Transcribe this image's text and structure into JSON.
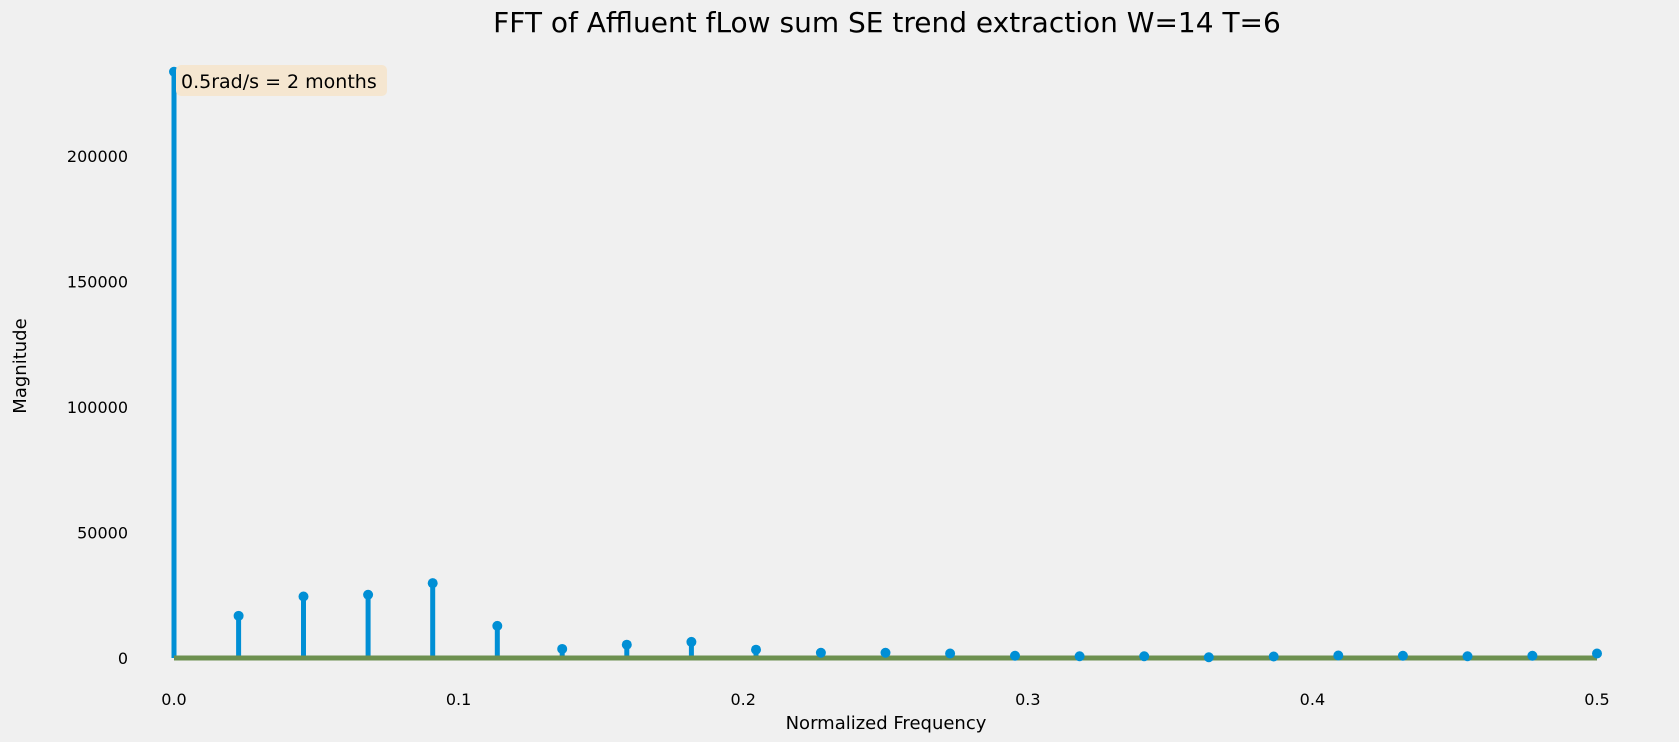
{
  "chart_data": {
    "type": "stem",
    "title": "FFT of Affluent fLow sum SE trend extraction W=14 T=6",
    "xlabel": "Normalized Frequency",
    "ylabel": "Magnitude",
    "xlim": [
      0.0,
      0.5
    ],
    "ylim": [
      0,
      235000
    ],
    "xticks": [
      0.0,
      0.1,
      0.2,
      0.3,
      0.4,
      0.5
    ],
    "xtick_labels": [
      "0.0",
      "0.1",
      "0.2",
      "0.3",
      "0.4",
      "0.5"
    ],
    "yticks": [
      0,
      50000,
      100000,
      150000,
      200000
    ],
    "ytick_labels": [
      "0",
      "50000",
      "100000",
      "150000",
      "200000"
    ],
    "grid": false,
    "annotation": "0.5rad/s = 2 months",
    "colors": {
      "stem": "#008fd5",
      "baseline": "#6d904f",
      "annotation_bg": "#f5e6d0",
      "background": "#f0f0f0"
    },
    "x": [
      0.0,
      0.0227,
      0.0455,
      0.0682,
      0.0909,
      0.1136,
      0.1364,
      0.1591,
      0.1818,
      0.2045,
      0.2273,
      0.25,
      0.2727,
      0.2955,
      0.3182,
      0.3409,
      0.3636,
      0.3864,
      0.4091,
      0.4318,
      0.4545,
      0.4773,
      0.5
    ],
    "values": [
      233500,
      16800,
      24500,
      25200,
      29800,
      12800,
      3600,
      5300,
      6400,
      3300,
      2100,
      2100,
      1800,
      900,
      700,
      700,
      300,
      600,
      1000,
      900,
      700,
      900,
      1800
    ]
  }
}
